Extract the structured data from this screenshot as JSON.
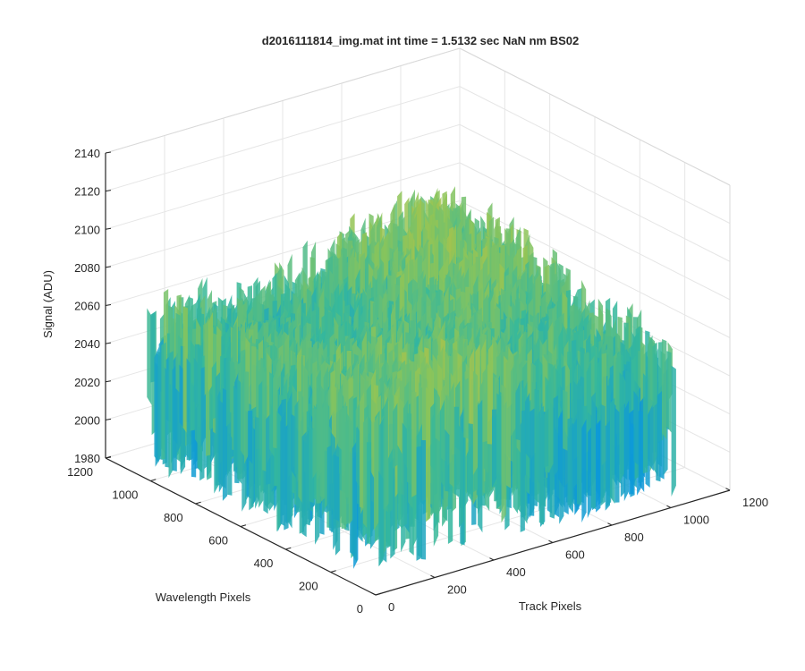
{
  "chart_data": {
    "type": "surface",
    "title": "d2016111814_img.mat int time = 1.5132 sec  NaN nm BS02",
    "xlabel": "Track Pixels",
    "ylabel": "Wavelength Pixels",
    "zlabel": "Signal (ADU)",
    "xlim": [
      0,
      1200
    ],
    "ylim": [
      0,
      1200
    ],
    "zlim": [
      1980,
      2140
    ],
    "x_ticks": [
      "0",
      "200",
      "400",
      "600",
      "800",
      "1000",
      "1200"
    ],
    "y_ticks": [
      "0",
      "200",
      "400",
      "600",
      "800",
      "1000",
      "1200"
    ],
    "z_ticks": [
      "1980",
      "2000",
      "2020",
      "2040",
      "2060",
      "2080",
      "2100",
      "2120",
      "2140"
    ],
    "grid": true,
    "colormap": "parula",
    "colors": {
      "low": "#0072BD",
      "mid": "#35B79C",
      "high": "#EDC02E"
    },
    "surface_extent": {
      "x": [
        0,
        1024
      ],
      "y": [
        0,
        1024
      ]
    },
    "surface_summary": {
      "min": 1990,
      "mean": 2055,
      "max": 2125
    }
  }
}
